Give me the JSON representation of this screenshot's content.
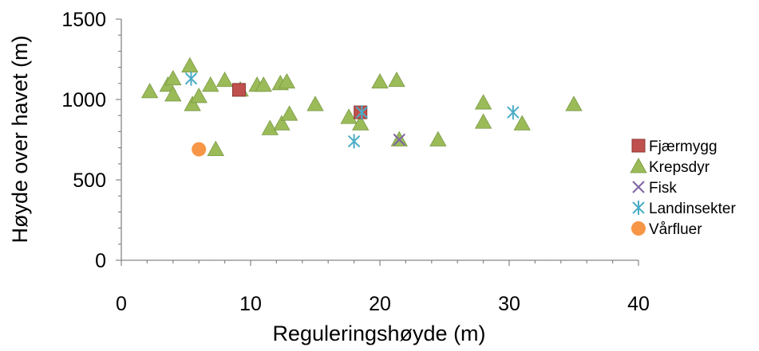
{
  "chart_data": {
    "type": "scatter",
    "title": "",
    "xlabel": "Reguleringshøyde (m)",
    "ylabel": "Høyde over havet (m)",
    "xlim": [
      0,
      40
    ],
    "ylim": [
      0,
      1500
    ],
    "xticks": [
      0,
      10,
      20,
      30,
      40
    ],
    "yticks": [
      0,
      500,
      1000,
      1500
    ],
    "grid": false,
    "legend_position": "right",
    "series": [
      {
        "name": "Fjærmygg",
        "marker": "square",
        "color": "#C0504D",
        "points": [
          [
            9.1,
            1060
          ],
          [
            18.5,
            920
          ]
        ]
      },
      {
        "name": "Krepsdyr",
        "marker": "triangle",
        "color": "#9BBB59",
        "points": [
          [
            2.2,
            1050
          ],
          [
            3.6,
            1090
          ],
          [
            4.0,
            1130
          ],
          [
            4.0,
            1030
          ],
          [
            5.3,
            1210
          ],
          [
            5.5,
            970
          ],
          [
            6.0,
            1020
          ],
          [
            6.9,
            1090
          ],
          [
            7.3,
            690
          ],
          [
            8.0,
            1120
          ],
          [
            9.2,
            1060
          ],
          [
            10.5,
            1090
          ],
          [
            11.0,
            1090
          ],
          [
            11.5,
            820
          ],
          [
            12.3,
            1100
          ],
          [
            12.4,
            850
          ],
          [
            12.8,
            1110
          ],
          [
            13.0,
            910
          ],
          [
            15.0,
            970
          ],
          [
            17.6,
            890
          ],
          [
            18.5,
            850
          ],
          [
            20.0,
            1110
          ],
          [
            21.3,
            1120
          ],
          [
            21.5,
            750
          ],
          [
            24.5,
            750
          ],
          [
            28.0,
            980
          ],
          [
            28.0,
            860
          ],
          [
            31.0,
            850
          ],
          [
            35.0,
            970
          ]
        ]
      },
      {
        "name": "Fisk",
        "marker": "x",
        "color": "#8064A2",
        "points": [
          [
            21.5,
            750
          ]
        ]
      },
      {
        "name": "Landinsekter",
        "marker": "asterisk",
        "color": "#4BACC6",
        "points": [
          [
            5.4,
            1130
          ],
          [
            18.0,
            740
          ],
          [
            18.6,
            920
          ],
          [
            30.3,
            920
          ]
        ]
      },
      {
        "name": "Vårfluer",
        "marker": "circle",
        "color": "#F79646",
        "points": [
          [
            6.0,
            690
          ]
        ]
      }
    ]
  }
}
